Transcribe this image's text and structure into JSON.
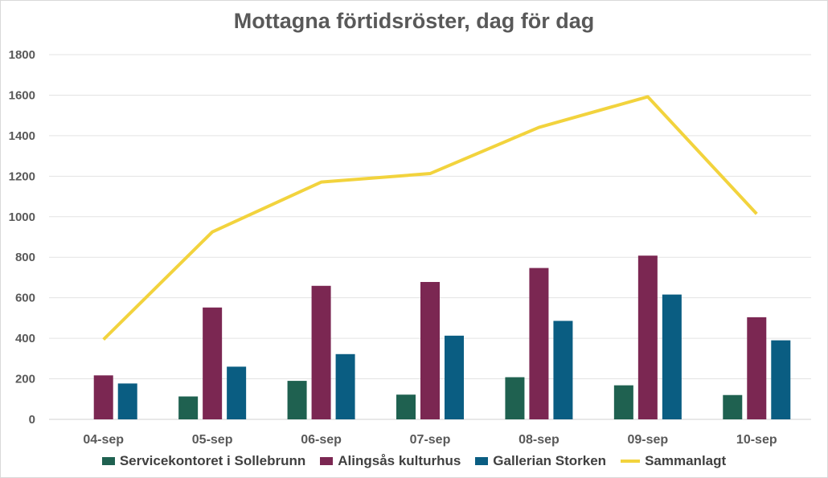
{
  "chart_data": {
    "type": "bar",
    "title": "Mottagna förtidsröster, dag för dag",
    "categories": [
      "04-sep",
      "05-sep",
      "06-sep",
      "07-sep",
      "08-sep",
      "09-sep",
      "10-sep"
    ],
    "series": [
      {
        "name": "Servicekontoret i Sollebrunn",
        "type": "bar",
        "color": "#1f6150",
        "values": [
          null,
          113,
          190,
          122,
          208,
          168,
          120
        ]
      },
      {
        "name": "Alingsås kulturhus",
        "type": "bar",
        "color": "#7b2752",
        "values": [
          217,
          552,
          659,
          678,
          747,
          808,
          504
        ]
      },
      {
        "name": "Gallerian Storken",
        "type": "bar",
        "color": "#0a5d82",
        "values": [
          177,
          260,
          322,
          413,
          486,
          616,
          390
        ]
      },
      {
        "name": "Sammanlagt",
        "type": "line",
        "color": "#f2d33d",
        "values": [
          394,
          925,
          1171,
          1213,
          1441,
          1592,
          1014
        ]
      }
    ],
    "ylim": [
      0,
      1800
    ],
    "yticks": [
      0,
      200,
      400,
      600,
      800,
      1000,
      1200,
      1400,
      1600,
      1800
    ],
    "grid": true,
    "legend_position": "bottom",
    "gridline_color": "#e3e3e3"
  }
}
